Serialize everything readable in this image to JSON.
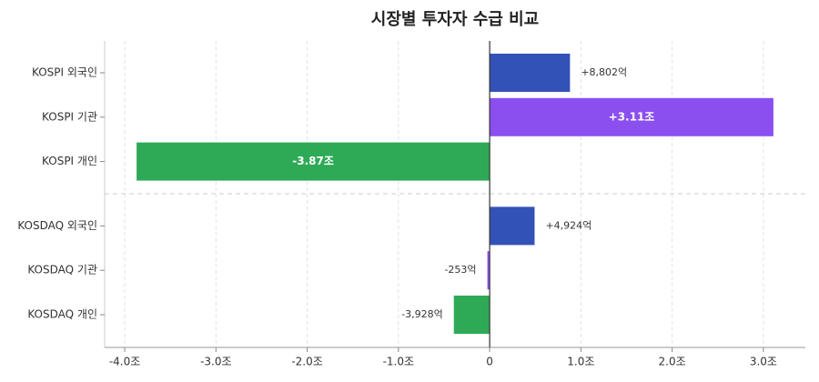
{
  "chart_data": {
    "type": "hbar",
    "title": "시장별 투자자 수급 비교",
    "categories": [
      "KOSPI 외국인",
      "KOSPI 기관",
      "KOSPI 개인",
      "KOSDAQ 외국인",
      "KOSDAQ 기관",
      "KOSDAQ 개인"
    ],
    "values": [
      0.8802,
      3.11,
      -3.87,
      0.4924,
      -0.0253,
      -0.3928
    ],
    "value_labels": [
      "+8,802억",
      "+3.11조",
      "-3.87조",
      "+4,924억",
      "-253억",
      "-3,928억"
    ],
    "colors": [
      "#3352b8",
      "#8b4ff0",
      "#2eaa57",
      "#3352b8",
      "#8b4ff0",
      "#2eaa57"
    ],
    "xlim": [
      -4.22,
      3.46
    ],
    "xticks": [
      {
        "value": -4,
        "label": "-4.0조"
      },
      {
        "value": -3,
        "label": "-3.0조"
      },
      {
        "value": -2,
        "label": "-2.0조"
      },
      {
        "value": -1,
        "label": "-1.0조"
      },
      0,
      {
        "value": 1,
        "label": "1.0조"
      },
      {
        "value": 2,
        "label": "2.0조"
      },
      {
        "value": 3,
        "label": "3.0조"
      }
    ],
    "grid": true
  }
}
